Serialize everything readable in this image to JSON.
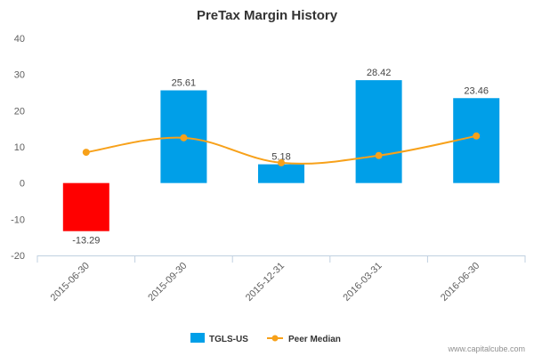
{
  "chart_data": {
    "type": "bar",
    "title": "PreTax Margin History",
    "categories": [
      "2015-06-30",
      "2015-09-30",
      "2015-12-31",
      "2016-03-31",
      "2016-06-30"
    ],
    "series": [
      {
        "name": "TGLS-US",
        "kind": "bar",
        "values": [
          -13.29,
          25.61,
          5.18,
          28.42,
          23.46
        ],
        "labels": [
          "-13.29",
          "25.61",
          "5.18",
          "28.42",
          "23.46"
        ],
        "color": "#009fe8",
        "negative_color": "#ff0000"
      },
      {
        "name": "Peer Median",
        "kind": "line",
        "values": [
          8.5,
          12.5,
          5.6,
          7.6,
          13.0
        ],
        "color": "#f7a11a"
      }
    ],
    "ylim": [
      -20,
      40
    ],
    "yticks": [
      -20,
      -10,
      0,
      10,
      20,
      30,
      40
    ],
    "ytick_labels": [
      "-20",
      "-10",
      "0",
      "10",
      "20",
      "30",
      "40"
    ],
    "grid": false,
    "legend": "bottom-center",
    "xlabel": "",
    "ylabel": ""
  },
  "credit": "www.capitalcube.com"
}
